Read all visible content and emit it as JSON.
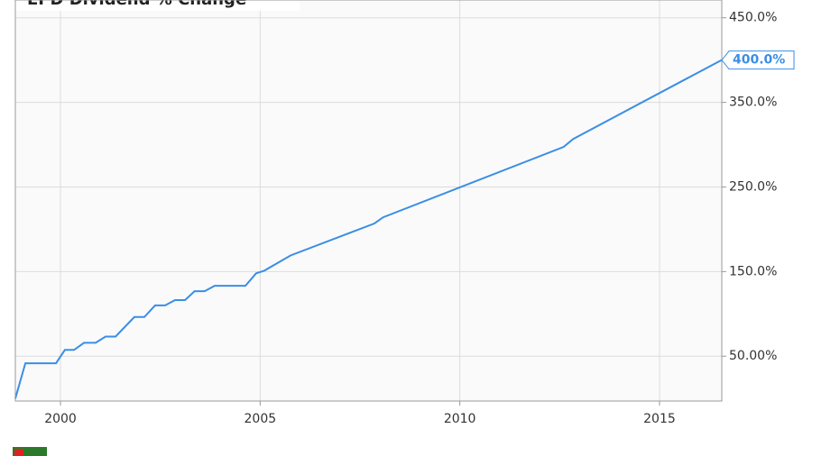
{
  "chart_data": {
    "type": "line",
    "title": "EPD Dividend % Change",
    "x": [
      1998.87,
      1999.12,
      1999.89,
      2000.11,
      2000.34,
      2000.59,
      2000.88,
      2001.13,
      2001.38,
      2001.85,
      2002.1,
      2002.37,
      2002.62,
      2002.87,
      2003.12,
      2003.36,
      2003.61,
      2003.86,
      2004.63,
      2004.9,
      2005.1,
      2005.76,
      2007.86,
      2008.08,
      2012.6,
      2012.84,
      2016.55
    ],
    "values": [
      0,
      41.6,
      41.6,
      57.4,
      57.4,
      65.8,
      65.8,
      73.2,
      73.2,
      96.3,
      96.3,
      110,
      110,
      116.3,
      116.3,
      126.8,
      126.8,
      133.2,
      133.2,
      147.9,
      151,
      169,
      206.8,
      214.2,
      297.4,
      306.8,
      400
    ],
    "value_labels": [
      null,
      null,
      null,
      null,
      null,
      null,
      null,
      null,
      null,
      null,
      null,
      null,
      null,
      null,
      null,
      null,
      null,
      null,
      null,
      null,
      null,
      null,
      null,
      null,
      null,
      null,
      "400.0%"
    ],
    "color": "#3a8ee6",
    "xlim": [
      1998.87,
      2016.56
    ],
    "xticks": [
      2000,
      2005,
      2010,
      2015
    ],
    "ylim": [
      -3,
      471
    ],
    "yticks": [
      {
        "value": 50,
        "label": "50.00%"
      },
      {
        "value": 150,
        "label": "150.0%"
      },
      {
        "value": 250,
        "label": "250.0%"
      },
      {
        "value": 350,
        "label": "350.0%"
      },
      {
        "value": 450,
        "label": "450.0%"
      }
    ],
    "grid": true
  }
}
